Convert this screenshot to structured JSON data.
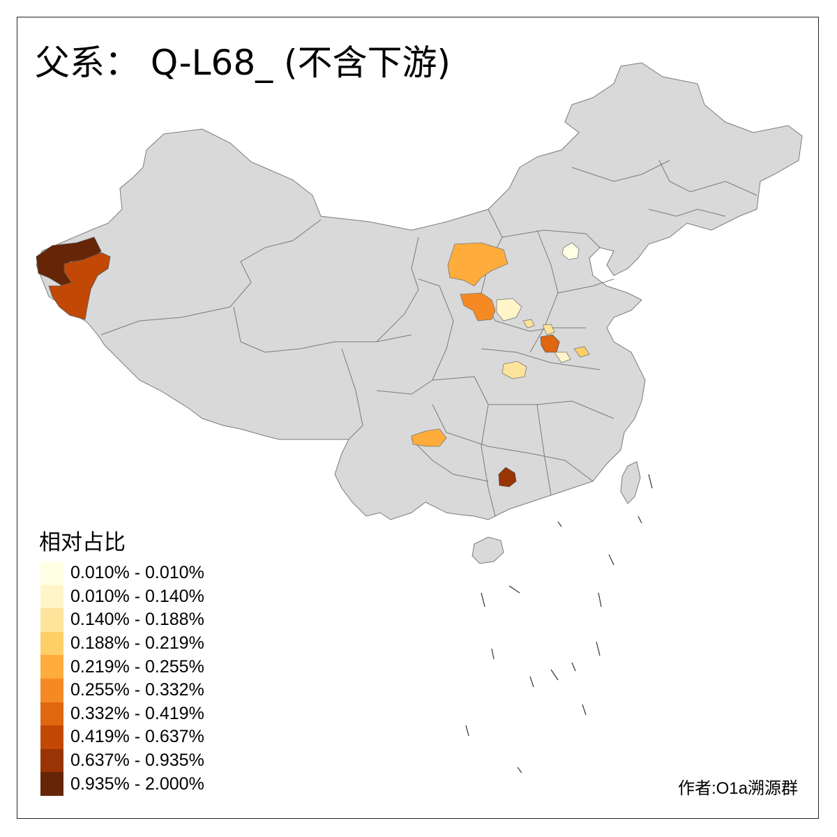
{
  "title": "父系： Q-L68_ (不含下游)",
  "legend": {
    "title": "相对占比",
    "items": [
      {
        "label": "0.010% - 0.010%",
        "color": "#ffffe5"
      },
      {
        "label": "0.010% - 0.140%",
        "color": "#fff5c8"
      },
      {
        "label": "0.140% - 0.188%",
        "color": "#fee39a"
      },
      {
        "label": "0.188% - 0.219%",
        "color": "#fecf66"
      },
      {
        "label": "0.219% - 0.255%",
        "color": "#feac3b"
      },
      {
        "label": "0.255% - 0.332%",
        "color": "#f58a24"
      },
      {
        "label": "0.332% - 0.419%",
        "color": "#e06710"
      },
      {
        "label": "0.419% - 0.637%",
        "color": "#c24806"
      },
      {
        "label": "0.637% - 0.935%",
        "color": "#993404"
      },
      {
        "label": "0.935% - 2.000%",
        "color": "#662506"
      }
    ]
  },
  "author": "作者:O1a溯源群",
  "map": {
    "base_fill": "#d9d9d9",
    "border_color": "#7a7a7a"
  }
}
